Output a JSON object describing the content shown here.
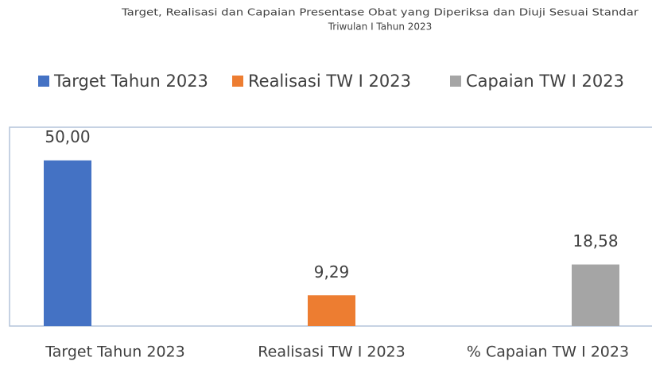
{
  "chart_data": {
    "type": "bar",
    "title": [
      "Target, Realisasi dan Capaian Presentase Obat yang Diperiksa dan Diuji Sesuai Standar",
      "Triwulan I Tahun 2023"
    ],
    "categories": [
      "Target Tahun 2023",
      "Realisasi TW I 2023",
      "% Capaian TW I 2023"
    ],
    "series": [
      {
        "name": "Target Tahun 2023",
        "color": "#4472c4",
        "values": [
          50,
          null,
          null
        ],
        "value_labels": [
          "50,00",
          null,
          null
        ]
      },
      {
        "name": "Realisasi TW I 2023",
        "color": "#ed7d31",
        "values": [
          null,
          9.29,
          null
        ],
        "value_labels": [
          null,
          "9,29",
          null
        ]
      },
      {
        "name": "Capaian TW I 2023",
        "color": "#a5a5a5",
        "values": [
          null,
          null,
          18.58
        ],
        "value_labels": [
          null,
          null,
          "18,58"
        ]
      }
    ],
    "ylim": [
      0,
      60
    ],
    "legend": "top"
  }
}
